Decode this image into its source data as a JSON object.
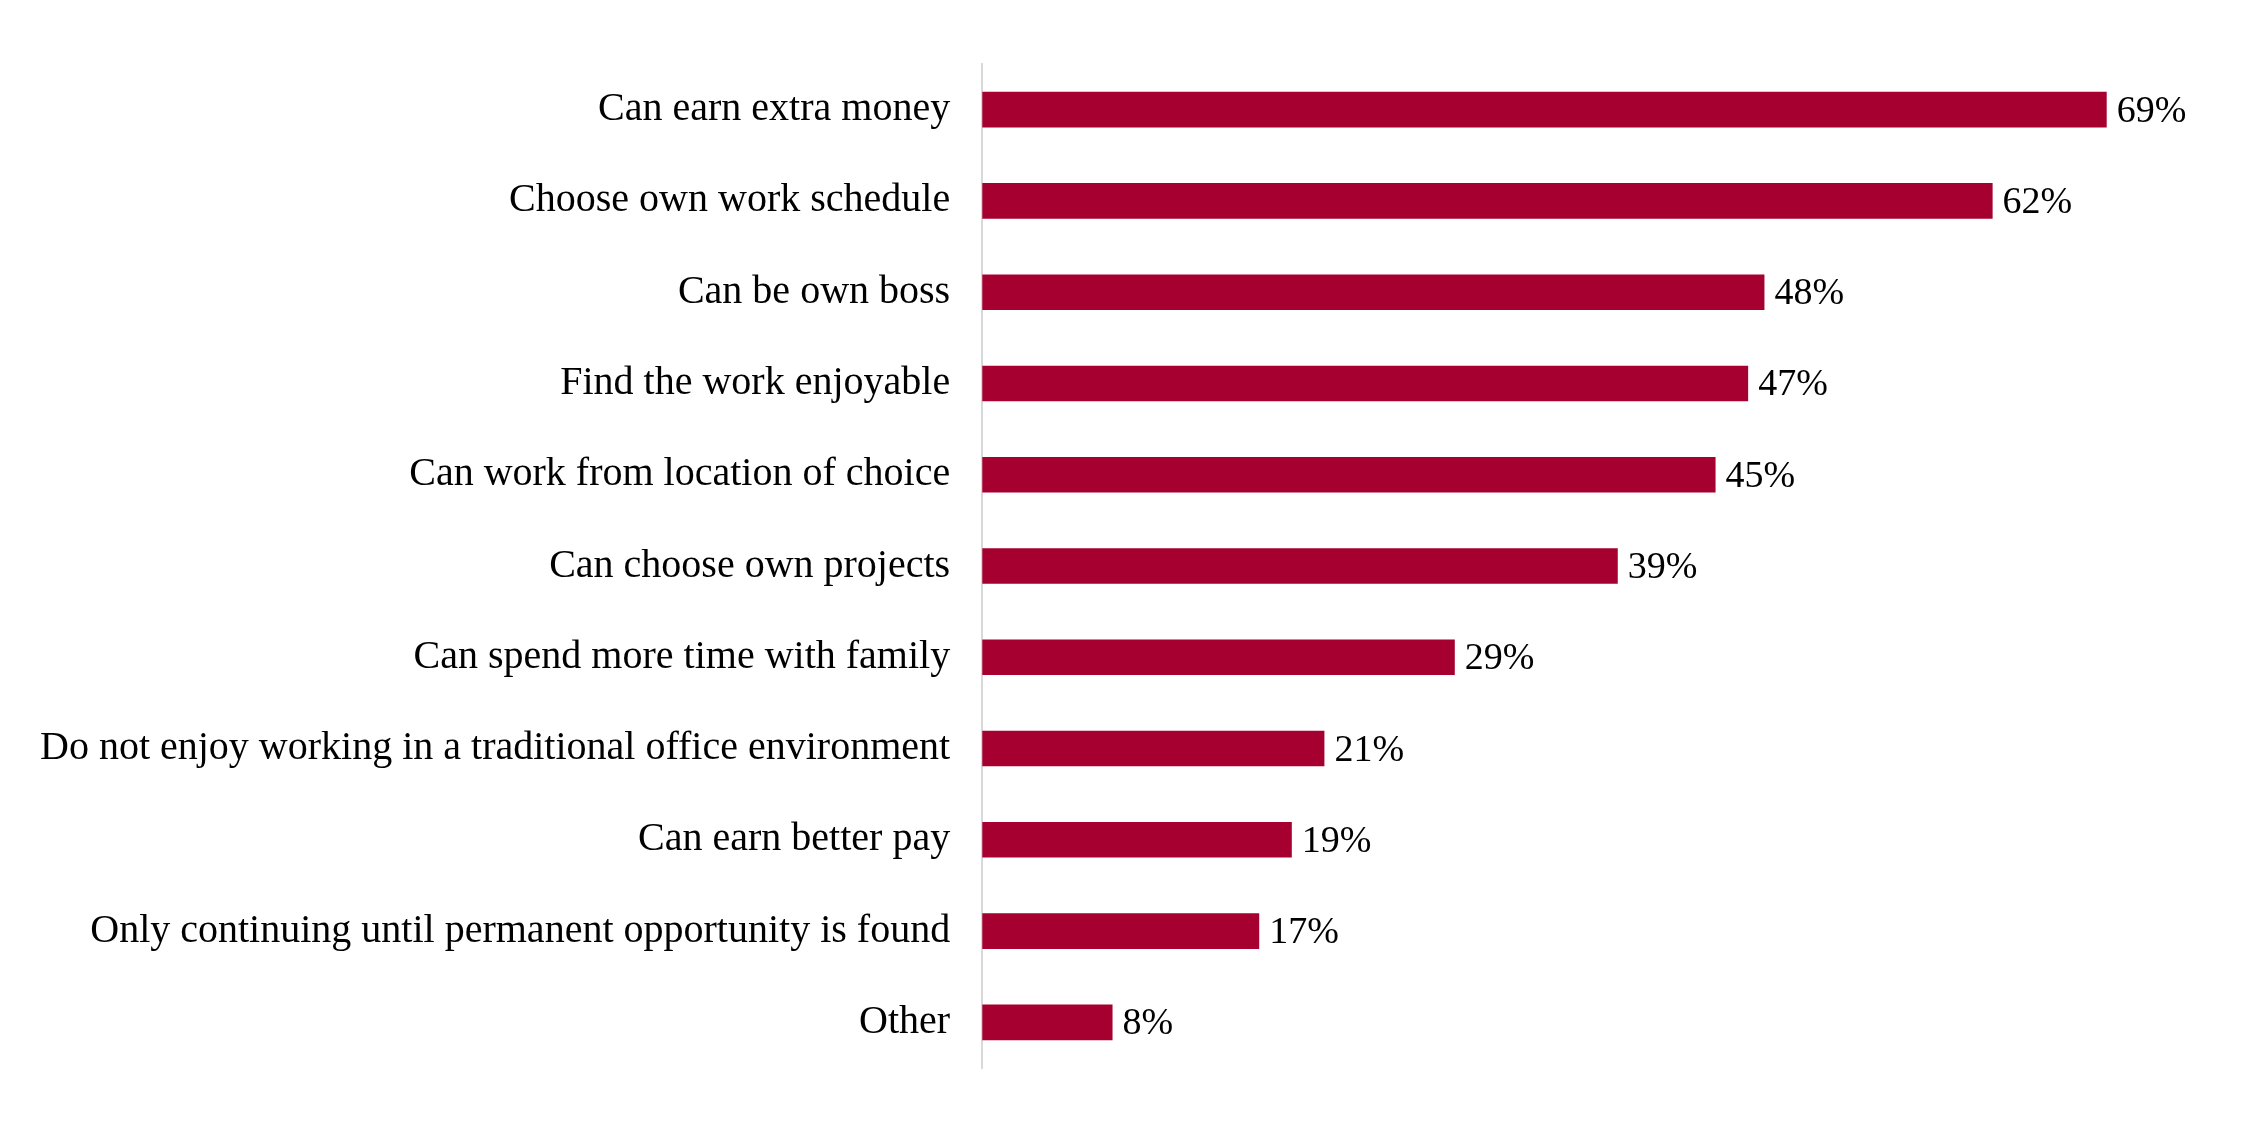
{
  "chart_data": {
    "type": "bar",
    "orientation": "horizontal",
    "categories": [
      "Can earn extra money",
      "Choose own work schedule",
      "Can be own boss",
      "Find the work enjoyable",
      "Can work from location of choice",
      "Can choose own projects",
      "Can spend more time with family",
      "Do not enjoy working in a traditional office environment",
      "Can earn better pay",
      "Only continuing until permanent opportunity is found",
      "Other"
    ],
    "values": [
      69,
      62,
      48,
      47,
      45,
      39,
      29,
      21,
      19,
      17,
      8
    ],
    "value_labels": [
      "69%",
      "62%",
      "48%",
      "47%",
      "45%",
      "39%",
      "29%",
      "21%",
      "19%",
      "17%",
      "8%"
    ],
    "color": "#a50030",
    "grid": false,
    "legend": false,
    "tick_labels": "y"
  }
}
